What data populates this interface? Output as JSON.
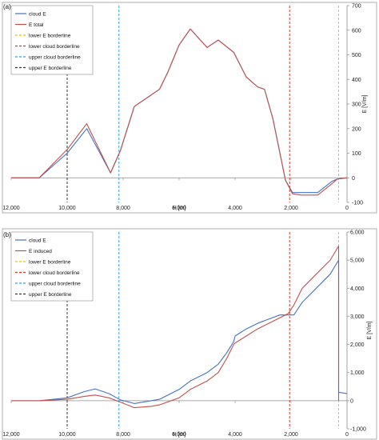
{
  "chart_data": [
    {
      "type": "line",
      "panel_label": "(a)",
      "xlabel": "H [m]",
      "ylabel": "E [V/m]",
      "xlim": [
        12000,
        0
      ],
      "ylim": [
        -100,
        700
      ],
      "xticks": [
        12000,
        10000,
        8000,
        6000,
        4000,
        2000,
        0
      ],
      "xtick_labels": [
        "12,000",
        "10,000",
        "8,000",
        "6,000",
        "4,000",
        "2,000",
        "0"
      ],
      "yticks": [
        -100,
        0,
        100,
        200,
        300,
        400,
        500,
        600,
        700
      ],
      "ytick_labels": [
        "-100",
        "0",
        "100",
        "200",
        "300",
        "400",
        "500",
        "600",
        "700"
      ],
      "series": [
        {
          "name": "cloud E",
          "color": "#4472c4",
          "x": [
            12000,
            11000,
            10000,
            9300,
            8450,
            8100,
            7600,
            6700,
            6400,
            6000,
            5600,
            5000,
            4600,
            4050,
            3600,
            3200,
            2950,
            2650,
            2200,
            1950,
            1650,
            1050,
            550,
            350,
            0
          ],
          "y": [
            0,
            0,
            100,
            200,
            20,
            110,
            290,
            360,
            430,
            540,
            605,
            530,
            560,
            510,
            410,
            370,
            360,
            240,
            -10,
            -60,
            -60,
            -60,
            -15,
            -5,
            0
          ]
        },
        {
          "name": "E total",
          "color": "#c0504d",
          "x": [
            12000,
            11000,
            10000,
            9300,
            8450,
            8100,
            7600,
            6700,
            6400,
            6000,
            5600,
            5000,
            4600,
            4050,
            3600,
            3200,
            2950,
            2650,
            2200,
            1950,
            1650,
            1050,
            550,
            350,
            0
          ],
          "y": [
            0,
            0,
            115,
            220,
            20,
            110,
            290,
            360,
            430,
            540,
            605,
            530,
            560,
            510,
            410,
            370,
            360,
            240,
            -10,
            -65,
            -70,
            -70,
            -25,
            -5,
            0
          ]
        }
      ],
      "vlines": [
        {
          "name": "lower E borderline",
          "x": 300,
          "color": "#f0c000"
        },
        {
          "name": "lower cloud borderline",
          "x": 2050,
          "color": "#e0302a"
        },
        {
          "name": "upper cloud borderline",
          "x": 8150,
          "color": "#2aa7e0"
        },
        {
          "name": "upper E borderline",
          "x": 10000,
          "color": "#333333"
        }
      ],
      "legend_placement": "top-left",
      "legend_order": [
        "cloud E",
        "E total",
        "lower E borderline",
        "lower cloud borderline",
        "upper cloud borderline",
        "upper E borderline"
      ],
      "grid": false
    },
    {
      "type": "line",
      "panel_label": "(b)",
      "xlabel": "H [m]",
      "ylabel": "E [V/m]",
      "xlim": [
        12000,
        0
      ],
      "ylim": [
        -1000,
        6000
      ],
      "xticks": [
        12000,
        10000,
        8000,
        6000,
        4000,
        2000,
        0
      ],
      "xtick_labels": [
        "12,000",
        "10,000",
        "8,000",
        "6,000",
        "4,000",
        "2,000",
        "0"
      ],
      "yticks": [
        -1000,
        0,
        1000,
        2000,
        3000,
        4000,
        5000,
        6000
      ],
      "ytick_labels": [
        "-1,000",
        "0",
        "1,000",
        "2,000",
        "3,000",
        "4,000",
        "5,000",
        "6,000"
      ],
      "series": [
        {
          "name": "cloud E",
          "color": "#4472c4",
          "x": [
            12000,
            11000,
            10000,
            9400,
            9000,
            8500,
            8100,
            7600,
            7000,
            6700,
            6000,
            5600,
            5000,
            4600,
            4300,
            4050,
            4000,
            3600,
            3200,
            2800,
            2400,
            2100,
            1900,
            1600,
            1100,
            600,
            300,
            300,
            0
          ],
          "y": [
            0,
            0,
            100,
            320,
            420,
            250,
            30,
            -100,
            0,
            50,
            400,
            700,
            1000,
            1300,
            1700,
            2100,
            2300,
            2550,
            2750,
            2900,
            3050,
            3050,
            3050,
            3500,
            4000,
            4500,
            5000,
            300,
            250
          ]
        },
        {
          "name": "E induced",
          "color": "#c0504d",
          "x": [
            12000,
            11000,
            10000,
            9400,
            9000,
            8500,
            8100,
            7600,
            7000,
            6700,
            6000,
            5600,
            5000,
            4600,
            4300,
            4050,
            4000,
            3600,
            3200,
            2800,
            2400,
            2100,
            1900,
            1600,
            1100,
            600,
            300,
            300
          ],
          "y": [
            0,
            0,
            50,
            150,
            200,
            100,
            -50,
            -250,
            -200,
            -150,
            100,
            400,
            700,
            1000,
            1500,
            2000,
            2050,
            2300,
            2550,
            2750,
            2950,
            3100,
            3400,
            4000,
            4500,
            5000,
            5500,
            0
          ]
        }
      ],
      "vlines": [
        {
          "name": "lower E borderline",
          "x": 300,
          "color": "#f0c000"
        },
        {
          "name": "lower cloud borderline",
          "x": 2050,
          "color": "#e0302a"
        },
        {
          "name": "upper cloud borderline",
          "x": 8150,
          "color": "#2aa7e0"
        },
        {
          "name": "upper E borderline",
          "x": 10000,
          "color": "#333333"
        }
      ],
      "legend_placement": "top-left",
      "legend_order": [
        "cloud E",
        "E induced",
        "lower E borderline",
        "lower cloud borderline",
        "upper cloud borderline",
        "upper E borderline"
      ],
      "grid": false
    }
  ]
}
